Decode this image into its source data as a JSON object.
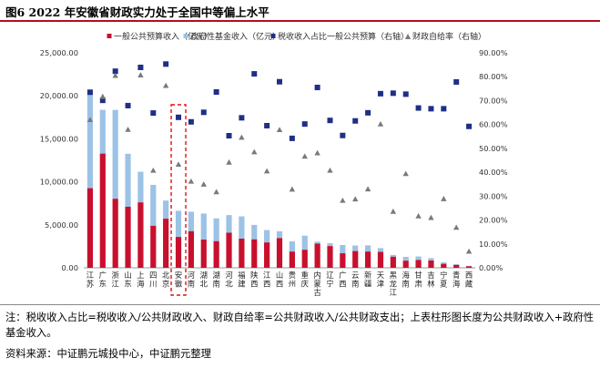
{
  "title": "图6  2022 年安徽省财政实力处于全国中等偏上水平",
  "note": "注：税收收入占比=税收收入/公共财政收入、财政自给率=公共财政收入/公共财政支出；上表柱形图长度为公共财政收入+政府性基金收入。",
  "source": "资料来源：中证鹏元城投中心，中证鹏元整理",
  "colors": {
    "public": "#c8102e",
    "fund": "#9cc3e6",
    "tax": "#1f2f86",
    "self": "#7a7a7a",
    "highlight": "#e01010"
  },
  "chart_data": {
    "type": "bar",
    "legend_position": "top",
    "grid": false,
    "categories": [
      "江苏",
      "广东",
      "浙江",
      "山东",
      "上海",
      "四川",
      "北京",
      "安徽",
      "河南",
      "湖北",
      "湖南",
      "河北",
      "福建",
      "陕西",
      "江西",
      "山西",
      "贵州",
      "重庆",
      "内蒙古",
      "辽宁",
      "广西",
      "云南",
      "新疆",
      "天津",
      "黑龙江",
      "海南",
      "甘肃",
      "吉林",
      "宁夏",
      "青海",
      "西藏"
    ],
    "highlight_category": "安徽",
    "yleft": {
      "min": 0,
      "max": 25000,
      "ticks": [
        "0.00",
        "5,000.00",
        "10,000.00",
        "15,000.00",
        "20,000.00",
        "25,000.00"
      ]
    },
    "yright": {
      "min": 0,
      "max": 90,
      "ticks": [
        "0.00%",
        "10.00%",
        "20.00%",
        "30.00%",
        "40.00%",
        "50.00%",
        "60.00%",
        "70.00%",
        "80.00%",
        "90.00%"
      ]
    },
    "series": [
      {
        "name": "一般公共预算收入（亿元）",
        "type": "bar",
        "axis": "left",
        "values": [
          9260,
          13280,
          8030,
          7100,
          7610,
          4890,
          5710,
          3590,
          4260,
          3280,
          3100,
          4080,
          3390,
          3310,
          2950,
          3450,
          1890,
          2100,
          2820,
          2530,
          1690,
          1950,
          1890,
          1850,
          1290,
          830,
          910,
          850,
          460,
          330,
          180
        ]
      },
      {
        "name": "政府性基金收入（亿元）",
        "type": "bar",
        "axis": "left",
        "values": [
          11170,
          5090,
          10330,
          6160,
          3560,
          4760,
          2110,
          3040,
          2260,
          3030,
          2650,
          2050,
          2590,
          1680,
          1440,
          800,
          1180,
          1640,
          210,
          330,
          960,
          640,
          720,
          440,
          210,
          440,
          410,
          280,
          180,
          110,
          50
        ]
      },
      {
        "name": "税收收入占比一般公共预算（右轴）",
        "type": "scatter",
        "axis": "right",
        "values": [
          73.5,
          70.1,
          82.3,
          67.9,
          83.9,
          64.8,
          85.3,
          63.0,
          61.1,
          65.1,
          73.6,
          55.3,
          62.8,
          81.2,
          59.5,
          77.9,
          54.2,
          60.2,
          75.5,
          61.7,
          55.4,
          61.5,
          64.9,
          72.9,
          73.1,
          72.7,
          66.9,
          66.6,
          66.6,
          77.8,
          59.2
        ]
      },
      {
        "name": "财政自给率（右轴）",
        "type": "scatter",
        "axis": "right",
        "values": [
          62.0,
          71.7,
          80.5,
          57.9,
          80.7,
          40.8,
          76.3,
          43.3,
          36.2,
          35.0,
          31.8,
          44.2,
          54.6,
          48.5,
          40.5,
          57.8,
          32.9,
          46.7,
          48.1,
          40.8,
          28.2,
          28.8,
          33.0,
          60.2,
          23.6,
          39.4,
          21.7,
          21.0,
          28.9,
          16.9,
          6.9
        ]
      }
    ]
  }
}
